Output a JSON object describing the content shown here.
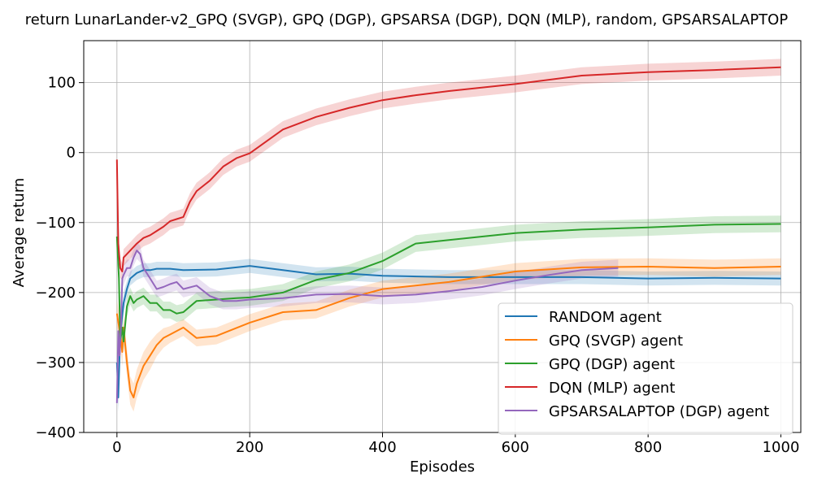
{
  "chart_data": {
    "type": "line",
    "title": "return LunarLander-v2_GPQ (SVGP), GPQ (DGP), GPSARSA (DGP), DQN (MLP), random, GPSARSALAPTOP",
    "xlabel": "Episodes",
    "ylabel": "Average return",
    "xlim": [
      -50,
      1030
    ],
    "ylim": [
      -400,
      160
    ],
    "xticks": [
      0,
      200,
      400,
      600,
      800,
      1000
    ],
    "yticks": [
      -400,
      -300,
      -200,
      -100,
      0,
      100
    ],
    "xtick_labels": [
      "0",
      "200",
      "400",
      "600",
      "800",
      "1000"
    ],
    "ytick_labels": [
      "−400",
      "−300",
      "−200",
      "−100",
      "0",
      "100"
    ],
    "grid": true,
    "legend_position": "lower-right",
    "series": [
      {
        "name": "RANDOM agent",
        "color": "#1f77b4",
        "x": [
          0,
          2,
          5,
          10,
          15,
          20,
          30,
          40,
          50,
          60,
          80,
          100,
          150,
          200,
          250,
          300,
          350,
          400,
          500,
          600,
          700,
          800,
          900,
          1000
        ],
        "y": [
          -300,
          -350,
          -260,
          -215,
          -195,
          -180,
          -172,
          -168,
          -168,
          -166,
          -166,
          -168,
          -167,
          -162,
          -168,
          -174,
          -173,
          -176,
          -178,
          -178,
          -178,
          -180,
          -179,
          -180
        ],
        "band": [
          -18,
          -20,
          -18,
          -15,
          -12,
          -10,
          -10,
          -10,
          -10,
          -10,
          -10,
          -10,
          -10,
          -10,
          -10,
          -10,
          -10,
          -10,
          -10,
          -10,
          -10,
          -10,
          -10,
          -10
        ]
      },
      {
        "name": "GPQ (SVGP) agent",
        "color": "#ff7f0e",
        "x": [
          0,
          5,
          8,
          10,
          15,
          20,
          25,
          30,
          40,
          50,
          60,
          70,
          80,
          100,
          120,
          150,
          200,
          250,
          300,
          350,
          400,
          450,
          500,
          600,
          700,
          800,
          900,
          1000
        ],
        "y": [
          -230,
          -260,
          -285,
          -250,
          -300,
          -340,
          -350,
          -330,
          -305,
          -290,
          -275,
          -265,
          -260,
          -250,
          -265,
          -262,
          -243,
          -228,
          -225,
          -208,
          -195,
          -190,
          -185,
          -170,
          -164,
          -163,
          -165,
          -163
        ],
        "band": [
          -20,
          -20,
          -20,
          -20,
          -20,
          -20,
          -20,
          -20,
          -20,
          -20,
          -16,
          -14,
          -12,
          -12,
          -12,
          -12,
          -12,
          -12,
          -12,
          -12,
          -12,
          -12,
          -12,
          -12,
          -12,
          -12,
          -12,
          -12
        ]
      },
      {
        "name": "GPQ (DGP) agent",
        "color": "#2ca02c",
        "x": [
          0,
          3,
          5,
          8,
          10,
          15,
          20,
          25,
          30,
          40,
          50,
          60,
          70,
          80,
          90,
          100,
          120,
          150,
          180,
          200,
          250,
          300,
          350,
          400,
          450,
          500,
          600,
          700,
          800,
          900,
          1000
        ],
        "y": [
          -120,
          -180,
          -270,
          -250,
          -270,
          -220,
          -205,
          -215,
          -210,
          -205,
          -215,
          -215,
          -225,
          -225,
          -230,
          -228,
          -212,
          -210,
          -208,
          -207,
          -200,
          -182,
          -172,
          -155,
          -130,
          -125,
          -115,
          -110,
          -107,
          -103,
          -102
        ],
        "band": [
          -15,
          -15,
          -15,
          -15,
          -15,
          -15,
          -12,
          -12,
          -12,
          -12,
          -12,
          -12,
          -12,
          -12,
          -12,
          -12,
          -12,
          -12,
          -12,
          -12,
          -12,
          -12,
          -12,
          -12,
          -12,
          -12,
          -12,
          -12,
          -12,
          -12,
          -12
        ]
      },
      {
        "name": "DQN (MLP) agent",
        "color": "#d62728",
        "x": [
          0,
          2,
          5,
          8,
          10,
          20,
          30,
          40,
          50,
          60,
          70,
          80,
          90,
          100,
          110,
          120,
          140,
          160,
          180,
          200,
          250,
          300,
          350,
          400,
          450,
          500,
          600,
          700,
          800,
          900,
          1000
        ],
        "y": [
          -10,
          -130,
          -165,
          -170,
          -150,
          -140,
          -130,
          -122,
          -118,
          -112,
          -106,
          -98,
          -95,
          -92,
          -70,
          -55,
          -40,
          -20,
          -8,
          -1,
          33,
          51,
          64,
          75,
          82,
          88,
          98,
          110,
          115,
          118,
          122
        ],
        "band": [
          -14,
          -14,
          -14,
          -12,
          -12,
          -12,
          -12,
          -12,
          -12,
          -12,
          -12,
          -12,
          -12,
          -12,
          -12,
          -12,
          -12,
          -12,
          -12,
          -12,
          -12,
          -12,
          -12,
          -12,
          -12,
          -12,
          -12,
          -12,
          -12,
          -12,
          -12
        ]
      },
      {
        "name": "GPSARSALAPTOP (DGP) agent",
        "color": "#9467bd",
        "x": [
          0,
          2,
          4,
          6,
          8,
          10,
          15,
          20,
          25,
          30,
          35,
          40,
          50,
          60,
          70,
          80,
          90,
          100,
          120,
          140,
          160,
          180,
          200,
          250,
          300,
          350,
          400,
          450,
          500,
          550,
          600,
          650,
          700,
          755
        ],
        "y": [
          -358,
          -255,
          -290,
          -250,
          -180,
          -175,
          -165,
          -165,
          -150,
          -140,
          -145,
          -165,
          -180,
          -195,
          -192,
          -188,
          -185,
          -195,
          -190,
          -205,
          -212,
          -212,
          -210,
          -208,
          -203,
          -202,
          -205,
          -203,
          -198,
          -192,
          -183,
          -175,
          -168,
          -165
        ],
        "band": [
          -20,
          -20,
          -20,
          -16,
          -14,
          -14,
          -12,
          -12,
          -12,
          -12,
          -12,
          -12,
          -12,
          -12,
          -12,
          -12,
          -12,
          -12,
          -12,
          -12,
          -12,
          -12,
          -12,
          -12,
          -12,
          -12,
          -12,
          -12,
          -12,
          -12,
          -12,
          -12,
          -12,
          -12
        ]
      }
    ]
  }
}
